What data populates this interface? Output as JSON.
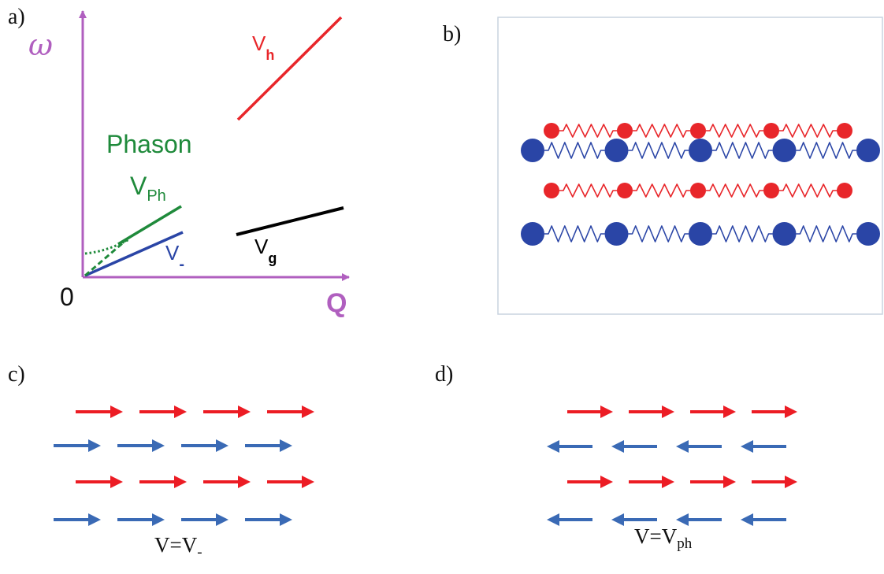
{
  "panels": {
    "a": {
      "letter": "a)",
      "y_axis_label": "ω",
      "x_axis_label": "Q",
      "origin_label": "0",
      "phason_label": "Phason",
      "vph_label": {
        "main": "V",
        "sub": "Ph"
      },
      "vminus_label": {
        "main": "V",
        "sub": "-"
      },
      "vh_label": {
        "main": "V",
        "sub": "h"
      },
      "vg_label": {
        "main": "V",
        "sub": "g"
      }
    },
    "b": {
      "letter": "b)",
      "rows": [
        {
          "kind": "small",
          "beads": 5
        },
        {
          "kind": "large",
          "beads": 5
        },
        {
          "kind": "small",
          "beads": 5
        },
        {
          "kind": "large",
          "beads": 5
        }
      ]
    },
    "c": {
      "letter": "c)",
      "rows": [
        {
          "color": "red",
          "direction": "right",
          "count": 4
        },
        {
          "color": "blue",
          "direction": "right",
          "count": 4
        },
        {
          "color": "red",
          "direction": "right",
          "count": 4
        },
        {
          "color": "blue",
          "direction": "right",
          "count": 4
        }
      ],
      "caption": {
        "main": "V=V",
        "sub": "-"
      }
    },
    "d": {
      "letter": "d)",
      "rows": [
        {
          "color": "red",
          "direction": "right",
          "count": 4
        },
        {
          "color": "blue",
          "direction": "left",
          "count": 4
        },
        {
          "color": "red",
          "direction": "right",
          "count": 4
        },
        {
          "color": "blue",
          "direction": "left",
          "count": 4
        }
      ],
      "caption": {
        "main": "V=V",
        "sub": "ph"
      }
    }
  },
  "colors": {
    "axis": "#b05fbf",
    "red": "#e8262a",
    "blue": "#2a45a6",
    "arrow_red": "#ec1c24",
    "arrow_blue": "#3a6ab5",
    "green": "#1f8a3b",
    "black": "#000000"
  }
}
